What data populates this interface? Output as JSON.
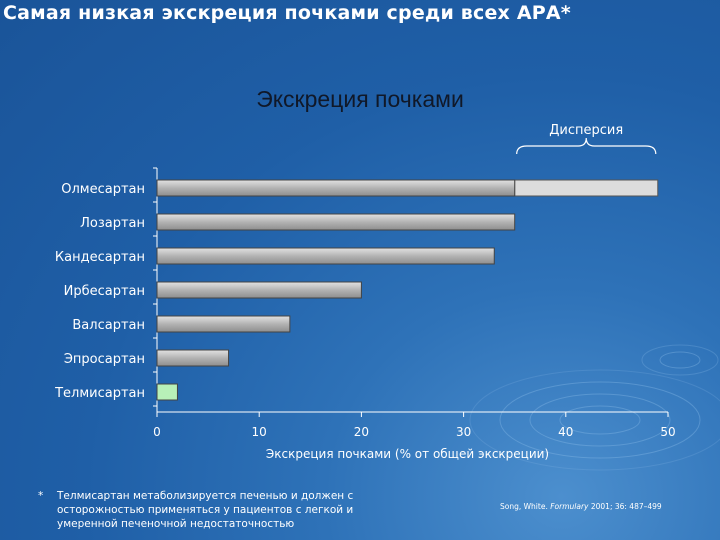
{
  "header": {
    "title": "Самая низкая экскреция почками среди всех АРА*"
  },
  "chart_data": {
    "type": "bar",
    "orientation": "horizontal",
    "title": "Экскреция почками",
    "xlabel": "Экскреция почками (% от общей экскреции)",
    "ylabel": "",
    "xlim": [
      0,
      50
    ],
    "xticks": [
      0,
      10,
      20,
      30,
      40,
      50
    ],
    "grid": false,
    "categories": [
      "Олмесартан",
      "Лозартан",
      "Кандесартан",
      "Ирбесартан",
      "Валсартан",
      "Эпросартан",
      "Телмисартан"
    ],
    "values": [
      35,
      35,
      33,
      20,
      13,
      7,
      2
    ],
    "range_ends": [
      49,
      null,
      null,
      null,
      null,
      null,
      null
    ],
    "range_annotation": "Дисперсия",
    "colors": {
      "bar": "#b3b3b3",
      "range": "#dcdcdc",
      "highlight": "#b8f0b8",
      "axis": "#ffffff",
      "subtitle": "#101828"
    },
    "highlight_category": "Телмисартан"
  },
  "footnote": {
    "star": "*",
    "text": "Телмисартан метаболизируется печенью и должен с осторожностью применяться у пациентов с легкой и умеренной печеночной недостаточностью"
  },
  "citation": {
    "authors": "Song, White.",
    "journal": "Formulary",
    "details": "2001; 36: 487–499"
  }
}
